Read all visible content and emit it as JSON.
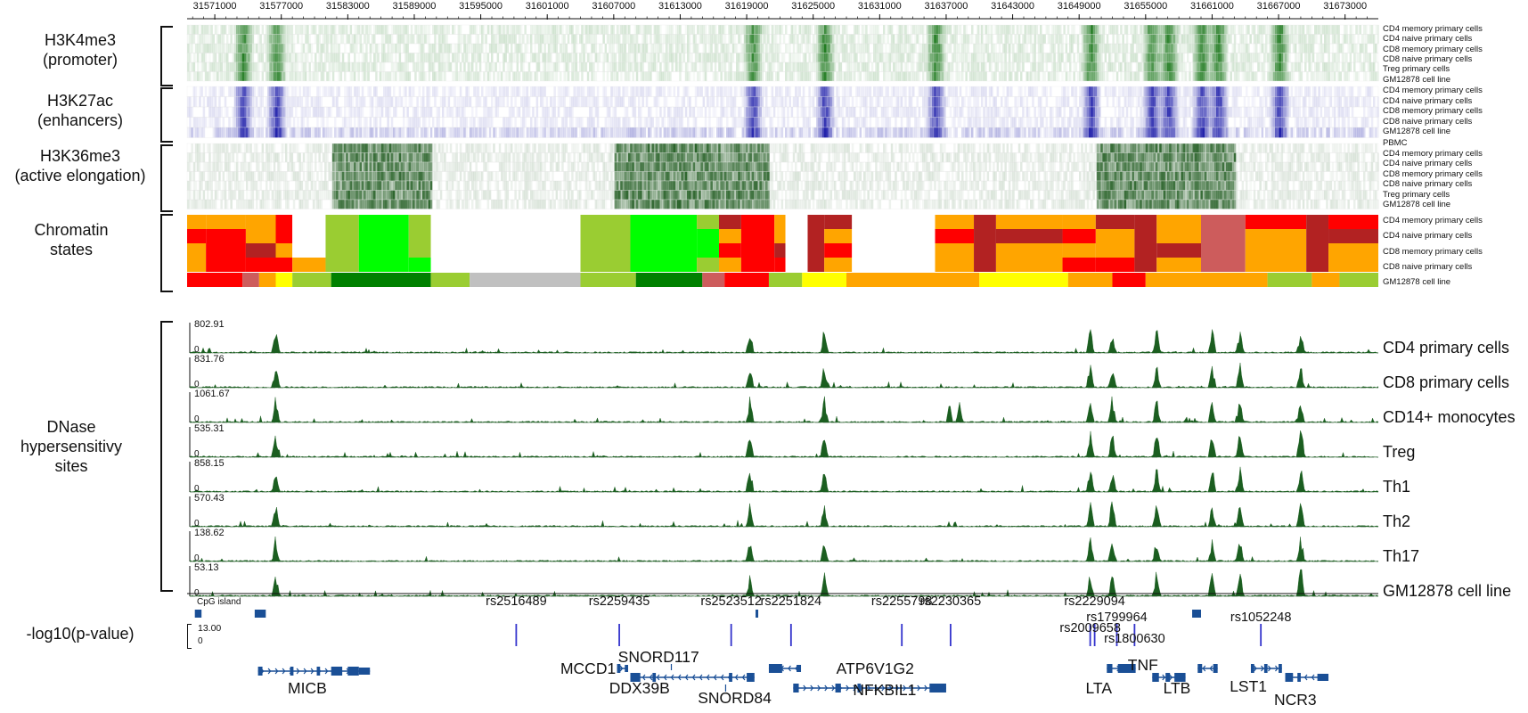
{
  "ruler": {
    "start": 31568500,
    "end": 31676000,
    "ticks": [
      "31571000",
      "31577000",
      "31583000",
      "31589000",
      "31595000",
      "31601000",
      "31607000",
      "31613000",
      "31619000",
      "31625000",
      "31631000",
      "31637000",
      "31643000",
      "31649000",
      "31655000",
      "31661000",
      "31667000",
      "31673000"
    ]
  },
  "sections": {
    "h3k4me3": "H3K4me3\n(promoter)",
    "h3k27ac": "H3K27ac\n(enhancers)",
    "h3k36me3": "H3K36me3\n(active elongation)",
    "chromatin": "Chromatin\nstates",
    "dnase": "DNase\nhypersensitivy\nsites",
    "pvalue": "-log10(p-value)"
  },
  "tracks": {
    "h3k4me3": [
      "CD4 memory primary cells",
      "CD4 naive primary cells",
      "CD8 memory primary cells",
      "CD8 naive primary cells",
      "Treg primary cells",
      "GM12878 cell line"
    ],
    "h3k27ac": [
      "CD4 memory primary cells",
      "CD4 naive primary cells",
      "CD8 memory primary cells",
      "CD8 naive primary cells",
      "GM12878 cell line"
    ],
    "h3k36me3": [
      "PBMC",
      "CD4 memory primary cells",
      "CD4 naive primary cells",
      "CD8 memory primary cells",
      "CD8 naive primary cells",
      "Treg primary cells",
      "GM12878 cell line"
    ],
    "chromatin": [
      "CD4 memory primary cells",
      "CD4 naive primary cells",
      "CD8 memory primary cells",
      "CD8 naive primary cells",
      "GM12878 cell line"
    ]
  },
  "colors": {
    "h3k4me3": "#1f7a1f",
    "h3k27ac": "#1a1aa8",
    "h3k36me3": "#1e5a1e",
    "dnase": "#1b5e20",
    "gene": "#1a4f96",
    "snp": "#3333cc",
    "chromatin_palette": [
      "#ff0000",
      "#ffa500",
      "#9acd32",
      "#00ff00",
      "#008000",
      "#ffff00",
      "#cd5c5c",
      "#c0c0c0",
      "#ffffff",
      "#b22222"
    ]
  },
  "dnase": [
    {
      "name": "CD4 primary cells",
      "max": "802.91",
      "zero": "0"
    },
    {
      "name": "CD8 primary cells",
      "max": "831.76",
      "zero": "0"
    },
    {
      "name": "CD14+ monocytes",
      "max": "1061.67",
      "zero": "0"
    },
    {
      "name": "Treg",
      "max": "535.31",
      "zero": "0"
    },
    {
      "name": "Th1",
      "max": "858.15",
      "zero": "0"
    },
    {
      "name": "Th2",
      "max": "570.43",
      "zero": "0"
    },
    {
      "name": "Th17",
      "max": "138.62",
      "zero": "0"
    },
    {
      "name": "GM12878 cell line",
      "max": "53.13",
      "zero": "0"
    }
  ],
  "cpg": {
    "label": "CpG island"
  },
  "pvalue": {
    "max": "13.00",
    "zero": "0"
  },
  "snps": [
    {
      "name": "rs2516489",
      "pos": 31598200,
      "label_row": 1
    },
    {
      "name": "rs2259435",
      "pos": 31607500,
      "label_row": 1
    },
    {
      "name": "rs2523512",
      "pos": 31617600,
      "label_row": 1
    },
    {
      "name": "rs2251824",
      "pos": 31623000,
      "label_row": 1
    },
    {
      "name": "rs2255798",
      "pos": 31633000,
      "label_row": 1
    },
    {
      "name": "rs2230365",
      "pos": 31637400,
      "label_row": 1
    },
    {
      "name": "rs2009658",
      "pos": 31650000,
      "label_row": 2
    },
    {
      "name": "rs2229094",
      "pos": 31650400,
      "label_row": 1
    },
    {
      "name": "rs1799964",
      "pos": 31652400,
      "label_row": 1.6
    },
    {
      "name": "rs1800630",
      "pos": 31654000,
      "label_row": 2.4
    },
    {
      "name": "rs1052248",
      "pos": 31665400,
      "label_row": 1.6
    }
  ],
  "genes": [
    {
      "name": "MICB",
      "label_pos": 31580000,
      "label_row": 1
    },
    {
      "name": "MCCD1",
      "label_pos": 31604600,
      "label_row": 0
    },
    {
      "name": "SNORD117",
      "label_pos": 31609800,
      "label_row": -0.6
    },
    {
      "name": "DDX39B",
      "label_pos": 31609000,
      "label_row": 1
    },
    {
      "name": "SNORD84",
      "label_pos": 31617000,
      "label_row": 1.5
    },
    {
      "name": "ATP6V1G2",
      "label_pos": 31629500,
      "label_row": 0
    },
    {
      "name": "NFKBIL1",
      "label_pos": 31631000,
      "label_row": 1.1
    },
    {
      "name": "LTA",
      "label_pos": 31652000,
      "label_row": 1
    },
    {
      "name": "TNF",
      "label_pos": 31655800,
      "label_row": -0.2
    },
    {
      "name": "LTB",
      "label_pos": 31659000,
      "label_row": 1
    },
    {
      "name": "LST1",
      "label_pos": 31665000,
      "label_row": 0.9
    },
    {
      "name": "NCR3",
      "label_pos": 31669000,
      "label_row": 1.6
    }
  ]
}
